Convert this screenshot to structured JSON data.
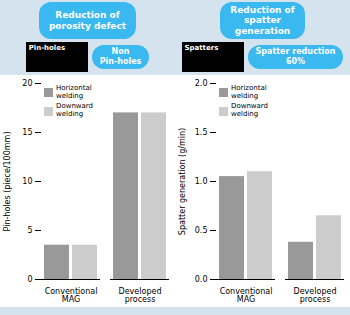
{
  "chart_data": [
    {
      "type": "bar",
      "title": "Reduction of\nporosity defect",
      "ylabel": "Pin-holes (piece/100mm)",
      "categories": [
        "Conventional\nMAG",
        "Developed\nprocess"
      ],
      "series": [
        {
          "name": "Horizontal\nwelding",
          "color": "#999999",
          "values": [
            3.5,
            17.0
          ]
        },
        {
          "name": "Downward\nwelding",
          "color": "#cccccc",
          "values": [
            3.5,
            17.0
          ]
        }
      ],
      "ylim": [
        0,
        20
      ],
      "yticks": [
        0,
        5,
        10,
        15,
        20
      ],
      "legend": "upper left",
      "grid": false,
      "annotations": [
        "Pin-holes",
        "Non\nPin-holes"
      ]
    },
    {
      "type": "bar",
      "title": "Reduction of\nspatter\ngeneration",
      "ylabel": "Spatter generation (g/min)",
      "categories": [
        "Conventional\nMAG",
        "Developed\nprocess"
      ],
      "series": [
        {
          "name": "Horizontal\nwelding",
          "color": "#999999",
          "values": [
            1.05,
            0.38
          ]
        },
        {
          "name": "Downward\nwelding",
          "color": "#cccccc",
          "values": [
            1.1,
            0.65
          ]
        }
      ],
      "ylim": [
        0,
        2.0
      ],
      "yticks": [
        {
          "value": 0,
          "label": "0.0"
        },
        0.5,
        {
          "value": 1,
          "label": "1.0"
        },
        1.5,
        {
          "value": 2,
          "label": "2.0"
        }
      ],
      "legend": "upper left",
      "grid": false,
      "annotations": [
        "Spatters",
        "Spatter reduction\n60%"
      ]
    }
  ]
}
